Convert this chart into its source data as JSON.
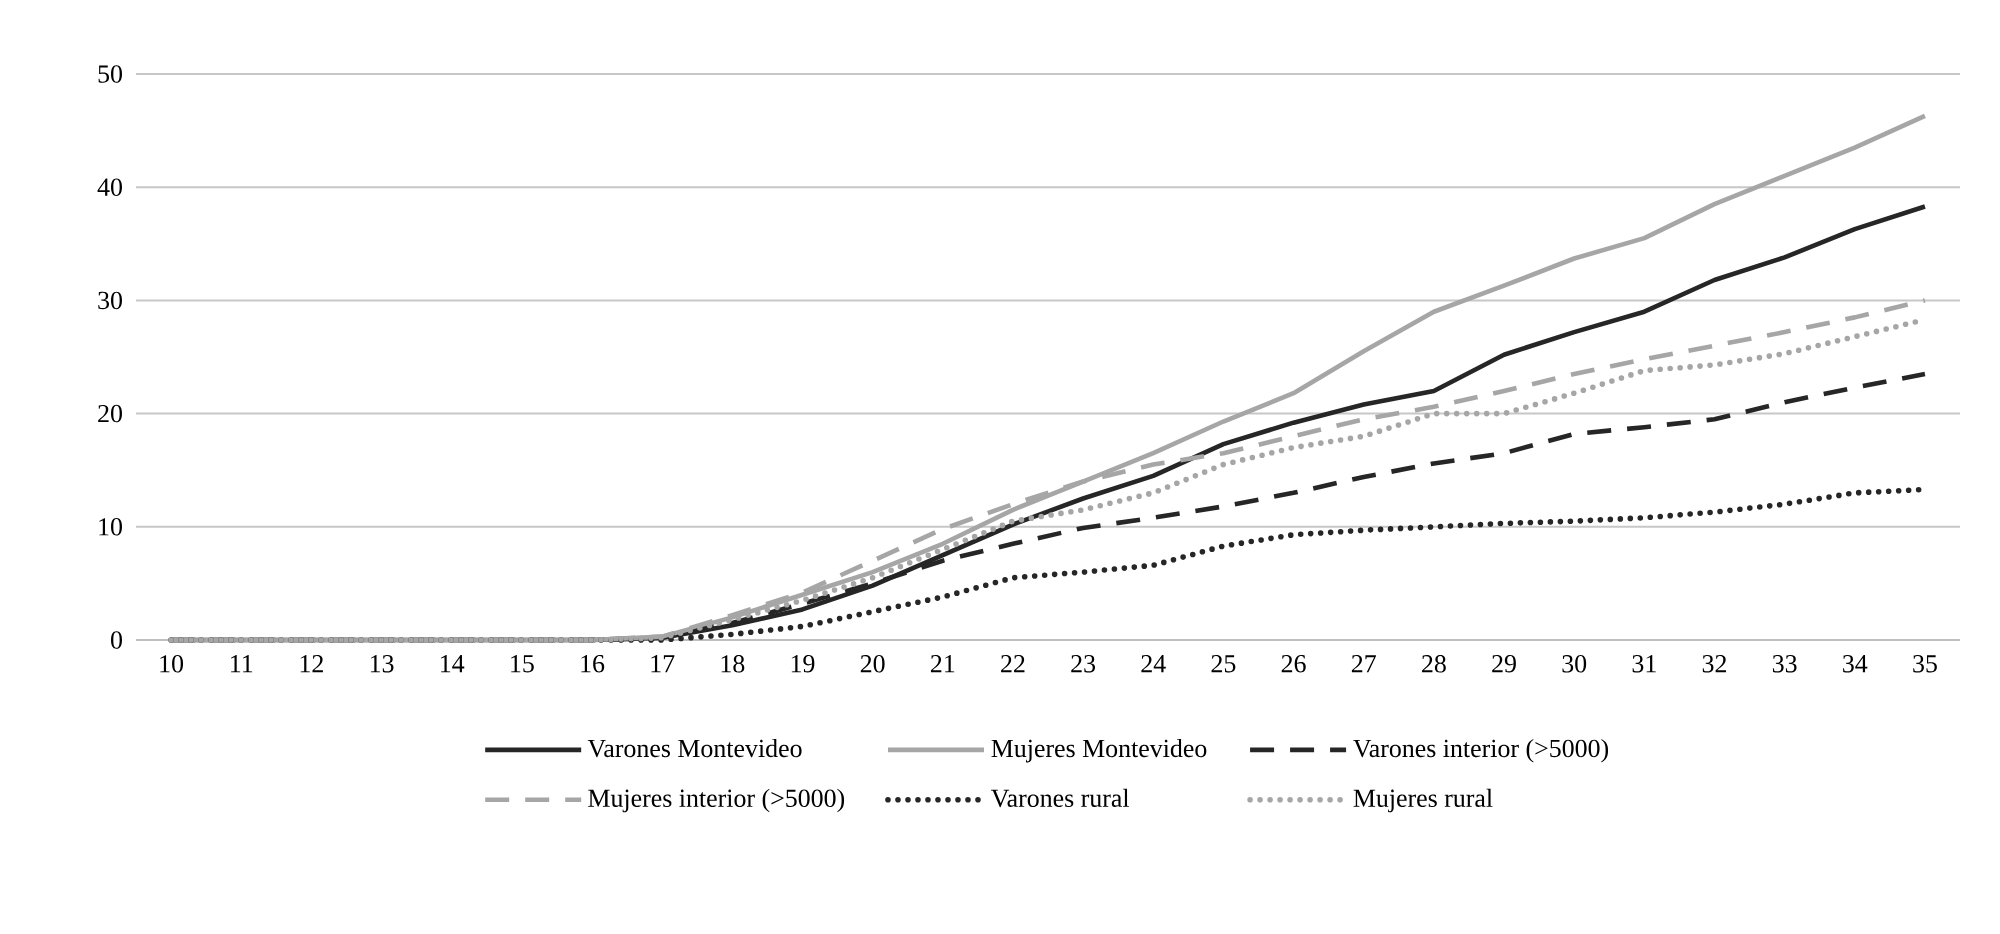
{
  "chart_data": {
    "type": "line",
    "categories": [
      "10",
      "11",
      "12",
      "13",
      "14",
      "15",
      "16",
      "17",
      "18",
      "19",
      "20",
      "21",
      "22",
      "23",
      "24",
      "25",
      "26",
      "27",
      "28",
      "29",
      "30",
      "31",
      "32",
      "33",
      "34",
      "35"
    ],
    "series": [
      {
        "name": "Varones Montevideo",
        "color": "#262626",
        "line_style": "solid",
        "values": [
          0,
          0,
          0,
          0,
          0,
          0,
          0,
          0.2,
          1.3,
          2.7,
          4.8,
          7.5,
          10.2,
          12.5,
          14.5,
          17.3,
          19.2,
          20.8,
          22,
          25.2,
          27.2,
          29,
          31.8,
          33.8,
          36.3,
          38.3
        ]
      },
      {
        "name": "Mujeres Montevideo",
        "color": "#a6a6a6",
        "line_style": "solid",
        "values": [
          0,
          0,
          0,
          0,
          0,
          0,
          0,
          0.3,
          2,
          4,
          6,
          8.5,
          11.5,
          14,
          16.5,
          19.3,
          21.8,
          25.5,
          29,
          31.3,
          33.7,
          35.5,
          38.5,
          41,
          43.5,
          46.3
        ]
      },
      {
        "name": "Varones interior (>5000)",
        "color": "#262626",
        "line_style": "dashed",
        "values": [
          0,
          0,
          0,
          0,
          0,
          0,
          0,
          0.2,
          1.5,
          3.2,
          5,
          7,
          8.5,
          9.9,
          10.8,
          11.8,
          13,
          14.4,
          15.6,
          16.5,
          18.2,
          18.8,
          19.5,
          21,
          22.3,
          23.5
        ]
      },
      {
        "name": "Mujeres interior (>5000)",
        "color": "#a6a6a6",
        "line_style": "dashed",
        "values": [
          0,
          0,
          0,
          0,
          0,
          0,
          0,
          0.3,
          2.2,
          4.2,
          7,
          9.8,
          12,
          14,
          15.5,
          16.5,
          18,
          19.5,
          20.6,
          22,
          23.5,
          24.8,
          26,
          27.2,
          28.5,
          30
        ]
      },
      {
        "name": "Varones rural",
        "color": "#262626",
        "line_style": "dotted",
        "values": [
          0,
          0,
          0,
          0,
          0,
          0,
          0,
          0,
          0.5,
          1.2,
          2.5,
          3.8,
          5.5,
          6,
          6.6,
          8.3,
          9.3,
          9.7,
          10,
          10.3,
          10.5,
          10.8,
          11.3,
          12,
          13,
          13.3
        ]
      },
      {
        "name": "Mujeres rural",
        "color": "#a6a6a6",
        "line_style": "dotted",
        "values": [
          0,
          0,
          0,
          0,
          0,
          0,
          0,
          0.2,
          1.8,
          3.5,
          5.5,
          8,
          10.5,
          11.5,
          13,
          15.5,
          17,
          18,
          20,
          20,
          21.8,
          23.8,
          24.3,
          25.3,
          26.8,
          28.3
        ]
      }
    ],
    "ylim": [
      0,
      50
    ],
    "yticks": [
      0,
      10,
      20,
      30,
      40,
      50
    ],
    "grid": "y",
    "legend": "bottom"
  }
}
